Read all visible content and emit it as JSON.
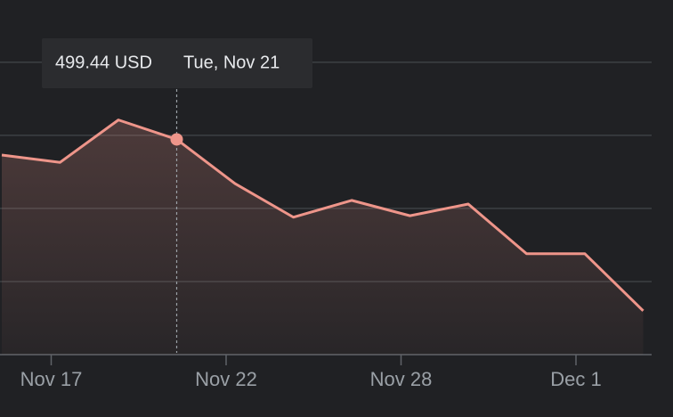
{
  "chart_data": {
    "type": "area",
    "categories": [
      null,
      "Nov 17",
      null,
      null,
      "Nov 22",
      null,
      null,
      "Nov 28",
      null,
      null,
      "Dec 1",
      null
    ],
    "values": [
      497.3,
      496.3,
      502.1,
      499.44,
      493.4,
      488.8,
      491.1,
      489.0,
      490.6,
      483.8,
      483.8,
      476.0
    ],
    "color": "#ee958a",
    "ylim": [
      470,
      514
    ],
    "yticks": [
      470,
      480,
      490,
      500,
      510
    ],
    "grid": true,
    "tooltip": {
      "index": 3,
      "value_label": "499.44 USD",
      "date": "Tue, Nov 21"
    }
  }
}
